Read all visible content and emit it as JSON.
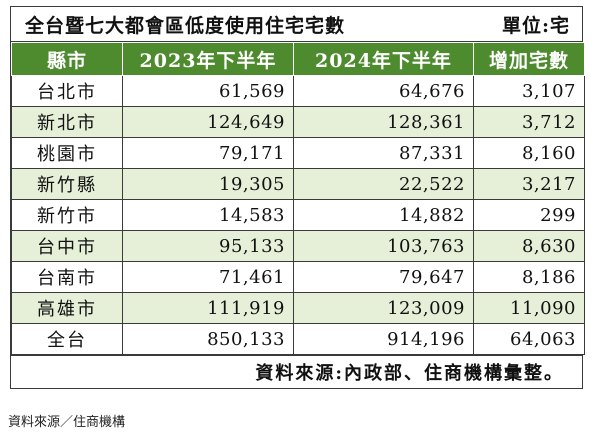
{
  "table": {
    "title": "全台暨七大都會區低度使用住宅宅數",
    "unit": "單位:宅",
    "headers": [
      "縣市",
      "2023年下半年",
      "2024年下半年",
      "增加宅數"
    ],
    "rows": [
      {
        "city": "台北市",
        "h2023": "61,569",
        "h2024": "64,676",
        "increase": "3,107"
      },
      {
        "city": "新北市",
        "h2023": "124,649",
        "h2024": "128,361",
        "increase": "3,712"
      },
      {
        "city": "桃園市",
        "h2023": "79,171",
        "h2024": "87,331",
        "increase": "8,160"
      },
      {
        "city": "新竹縣",
        "h2023": "19,305",
        "h2024": "22,522",
        "increase": "3,217"
      },
      {
        "city": "新竹市",
        "h2023": "14,583",
        "h2024": "14,882",
        "increase": "299"
      },
      {
        "city": "台中市",
        "h2023": "95,133",
        "h2024": "103,763",
        "increase": "8,630"
      },
      {
        "city": "台南市",
        "h2023": "71,461",
        "h2024": "79,647",
        "increase": "8,186"
      },
      {
        "city": "高雄市",
        "h2023": "111,919",
        "h2024": "123,009",
        "increase": "11,090"
      },
      {
        "city": "全台",
        "h2023": "850,133",
        "h2024": "914,196",
        "increase": "64,063"
      }
    ],
    "source": "資料來源:內政部、住商機構彙整。"
  },
  "caption": "資料來源／住商機構",
  "colors": {
    "header_bg": "#4e8a2e",
    "header_text": "#ffffff",
    "stripe": "#e6f0d8",
    "border": "#3a3a3a"
  }
}
